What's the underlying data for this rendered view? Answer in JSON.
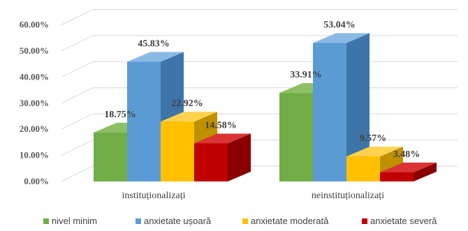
{
  "chart_data": {
    "type": "bar",
    "subtype": "3d-clustered-column",
    "categories": [
      "instituționalizați",
      "neinstituționalizați"
    ],
    "series": [
      {
        "name": "nivel minim",
        "color": "#70AD47",
        "values": [
          18.75,
          33.91
        ],
        "labels": [
          "18.75%",
          "33.91%"
        ]
      },
      {
        "name": "anxietate ușoară",
        "color": "#5B9BD5",
        "values": [
          45.83,
          53.04
        ],
        "labels": [
          "45.83%",
          "53.04%"
        ]
      },
      {
        "name": "anxietate moderată",
        "color": "#FFC000",
        "values": [
          22.92,
          9.57
        ],
        "labels": [
          "22.92%",
          "9.57%"
        ]
      },
      {
        "name": "anxietate severă",
        "color": "#C00000",
        "values": [
          14.58,
          3.48
        ],
        "labels": [
          "14.58%",
          "3.48%"
        ]
      }
    ],
    "y_ticks": [
      "0.00%",
      "10.00%",
      "20.00%",
      "30.00%",
      "40.00%",
      "50.00%",
      "60.00%"
    ],
    "ylim": [
      0,
      60
    ],
    "grid": true,
    "legend_position": "bottom"
  }
}
